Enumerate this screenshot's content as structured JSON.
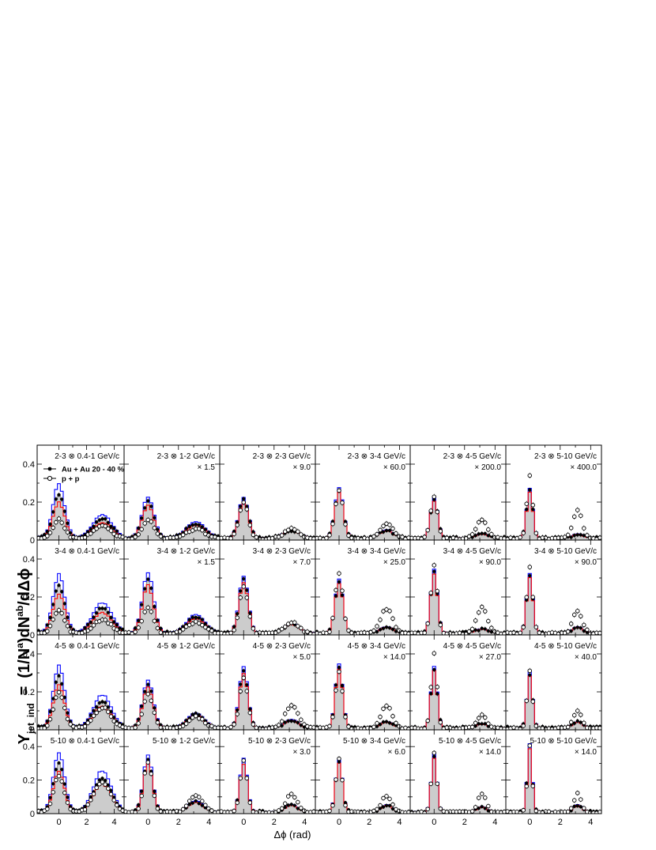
{
  "figure": {
    "y_axis_label": {
      "main": "Y",
      "sub": "jet_ind",
      "eq": "=",
      "expr_a": "(1/N",
      "sup_a": "a",
      "expr_b": ")dN",
      "sup_b": "ab",
      "expr_c": "/dΔϕ"
    },
    "x_axis_label": "Δϕ (rad)",
    "legend": [
      {
        "label": "Au + Au 20 - 40 %",
        "marker": "filled-circle"
      },
      {
        "label": "p + p",
        "marker": "open-circle"
      }
    ],
    "colors": {
      "fill": "#cccccc",
      "upper": "#0000ff",
      "lower": "#ff0000",
      "data": "#000000"
    },
    "x_ticks": [
      "0",
      "2",
      "4"
    ],
    "y_ticks": [
      "0",
      "0.2",
      "0.4"
    ],
    "rows": [
      {
        "trig": "2-3",
        "ylim": [
          0,
          0.5
        ]
      },
      {
        "trig": "3-4",
        "ylim": [
          0,
          0.5
        ]
      },
      {
        "trig": "4-5",
        "ylim": [
          0,
          0.5
        ]
      },
      {
        "trig": "5-10",
        "ylim": [
          0,
          0.5
        ]
      }
    ],
    "columns": [
      "0.4-1",
      "1-2",
      "2-3",
      "3-4",
      "4-5",
      "5-10"
    ],
    "unit": "GeV/c",
    "otimes": "⊗",
    "scale_factors": [
      [
        "",
        "× 1.5",
        "× 9.0",
        "× 60.0",
        "× 200.0",
        "× 400.0"
      ],
      [
        "",
        "× 1.5",
        "× 7.0",
        "× 25.0",
        "× 90.0",
        "× 90.0"
      ],
      [
        "",
        "",
        "× 5.0",
        "× 14.0",
        "× 27.0",
        "× 40.0"
      ],
      [
        "",
        "",
        "× 3.0",
        "× 6.0",
        "× 14.0",
        "× 14.0"
      ]
    ]
  },
  "chart_data": {
    "type": "line",
    "grid": "6 columns × 4 rows",
    "xlabel": "Δϕ (rad)",
    "ylabel": "Y_jet_ind = (1/N^a)dN^ab/dΔϕ",
    "xlim": [
      -1.57,
      4.71
    ],
    "ylim": [
      0,
      0.5
    ],
    "x_ticks": [
      0,
      2,
      4
    ],
    "y_ticks": [
      0,
      0.2,
      0.4
    ],
    "legend_position": "top-left of first panel",
    "series_names": [
      "Au + Au 20 - 40 %",
      "p + p"
    ],
    "panels": [
      {
        "trigger": "2-3",
        "partner": "0.4-1",
        "scale": "",
        "near": [
          0.23,
          0.1
        ],
        "away": [
          0.1,
          0.065
        ],
        "width": 0.42,
        "band": 0.05
      },
      {
        "trigger": "2-3",
        "partner": "1-2",
        "scale": "× 1.5",
        "near": [
          0.19,
          0.1
        ],
        "away": [
          0.075,
          0.05
        ],
        "width": 0.38,
        "band": 0.03
      },
      {
        "trigger": "2-3",
        "partner": "2-3",
        "scale": "× 9.0",
        "near": [
          0.2,
          0.19
        ],
        "away": [
          0.04,
          0.05
        ],
        "width": 0.32,
        "band": 0.015
      },
      {
        "trigger": "2-3",
        "partner": "3-4",
        "scale": "× 60.0",
        "near": [
          0.25,
          0.25
        ],
        "away": [
          0.04,
          0.08
        ],
        "width": 0.28,
        "band": 0.012
      },
      {
        "trigger": "2-3",
        "partner": "4-5",
        "scale": "× 200.0",
        "near": [
          0.2,
          0.22
        ],
        "away": [
          0.02,
          0.1
        ],
        "width": 0.24,
        "band": 0.01
      },
      {
        "trigger": "2-3",
        "partner": "5-10",
        "scale": "× 400.0",
        "near": [
          0.25,
          0.33
        ],
        "away": [
          0.02,
          0.15
        ],
        "width": 0.2,
        "band": 0.01
      },
      {
        "trigger": "3-4",
        "partner": "0.4-1",
        "scale": "",
        "near": [
          0.25,
          0.12
        ],
        "away": [
          0.13,
          0.07
        ],
        "width": 0.42,
        "band": 0.05
      },
      {
        "trigger": "3-4",
        "partner": "1-2",
        "scale": "× 1.5",
        "near": [
          0.28,
          0.14
        ],
        "away": [
          0.085,
          0.06
        ],
        "width": 0.36,
        "band": 0.03
      },
      {
        "trigger": "3-4",
        "partner": "2-3",
        "scale": "× 7.0",
        "near": [
          0.28,
          0.25
        ],
        "away": [
          0.045,
          0.06
        ],
        "width": 0.3,
        "band": 0.015
      },
      {
        "trigger": "3-4",
        "partner": "3-4",
        "scale": "× 25.0",
        "near": [
          0.27,
          0.32
        ],
        "away": [
          0.03,
          0.13
        ],
        "width": 0.26,
        "band": 0.01
      },
      {
        "trigger": "3-4",
        "partner": "4-5",
        "scale": "× 90.0",
        "near": [
          0.32,
          0.36
        ],
        "away": [
          0.02,
          0.14
        ],
        "width": 0.22,
        "band": 0.01
      },
      {
        "trigger": "3-4",
        "partner": "5-10",
        "scale": "× 90.0",
        "near": [
          0.3,
          0.35
        ],
        "away": [
          0.03,
          0.12
        ],
        "width": 0.2,
        "band": 0.01
      },
      {
        "trigger": "4-5",
        "partner": "0.4-1",
        "scale": "",
        "near": [
          0.27,
          0.19
        ],
        "away": [
          0.14,
          0.11
        ],
        "width": 0.4,
        "band": 0.05
      },
      {
        "trigger": "4-5",
        "partner": "1-2",
        "scale": "",
        "near": [
          0.23,
          0.18
        ],
        "away": [
          0.07,
          0.06
        ],
        "width": 0.34,
        "band": 0.02
      },
      {
        "trigger": "4-5",
        "partner": "2-3",
        "scale": "× 5.0",
        "near": [
          0.3,
          0.27
        ],
        "away": [
          0.04,
          0.12
        ],
        "width": 0.28,
        "band": 0.015
      },
      {
        "trigger": "4-5",
        "partner": "3-4",
        "scale": "× 14.0",
        "near": [
          0.32,
          0.3
        ],
        "away": [
          0.03,
          0.12
        ],
        "width": 0.24,
        "band": 0.01
      },
      {
        "trigger": "4-5",
        "partner": "4-5",
        "scale": "× 27.0",
        "near": [
          0.31,
          0.4
        ],
        "away": [
          0.02,
          0.07
        ],
        "width": 0.2,
        "band": 0.01
      },
      {
        "trigger": "4-5",
        "partner": "5-10",
        "scale": "× 40.0",
        "near": [
          0.28,
          0.3
        ],
        "away": [
          0.03,
          0.09
        ],
        "width": 0.18,
        "band": 0.01
      },
      {
        "trigger": "5-10",
        "partner": "0.4-1",
        "scale": "",
        "near": [
          0.29,
          0.22
        ],
        "away": [
          0.2,
          0.18
        ],
        "width": 0.4,
        "band": 0.05
      },
      {
        "trigger": "5-10",
        "partner": "1-2",
        "scale": "",
        "near": [
          0.31,
          0.3
        ],
        "away": [
          0.06,
          0.1
        ],
        "width": 0.3,
        "band": 0.02
      },
      {
        "trigger": "5-10",
        "partner": "2-3",
        "scale": "× 3.0",
        "near": [
          0.3,
          0.31
        ],
        "away": [
          0.04,
          0.11
        ],
        "width": 0.24,
        "band": 0.015
      },
      {
        "trigger": "5-10",
        "partner": "3-4",
        "scale": "× 6.0",
        "near": [
          0.3,
          0.32
        ],
        "away": [
          0.04,
          0.1
        ],
        "width": 0.22,
        "band": 0.01
      },
      {
        "trigger": "5-10",
        "partner": "4-5",
        "scale": "× 14.0",
        "near": [
          0.33,
          0.35
        ],
        "away": [
          0.03,
          0.11
        ],
        "width": 0.18,
        "band": 0.01
      },
      {
        "trigger": "5-10",
        "partner": "5-10",
        "scale": "× 14.0",
        "near": [
          0.39,
          0.4
        ],
        "away": [
          0.04,
          0.11
        ],
        "width": 0.16,
        "band": 0.01
      }
    ]
  }
}
